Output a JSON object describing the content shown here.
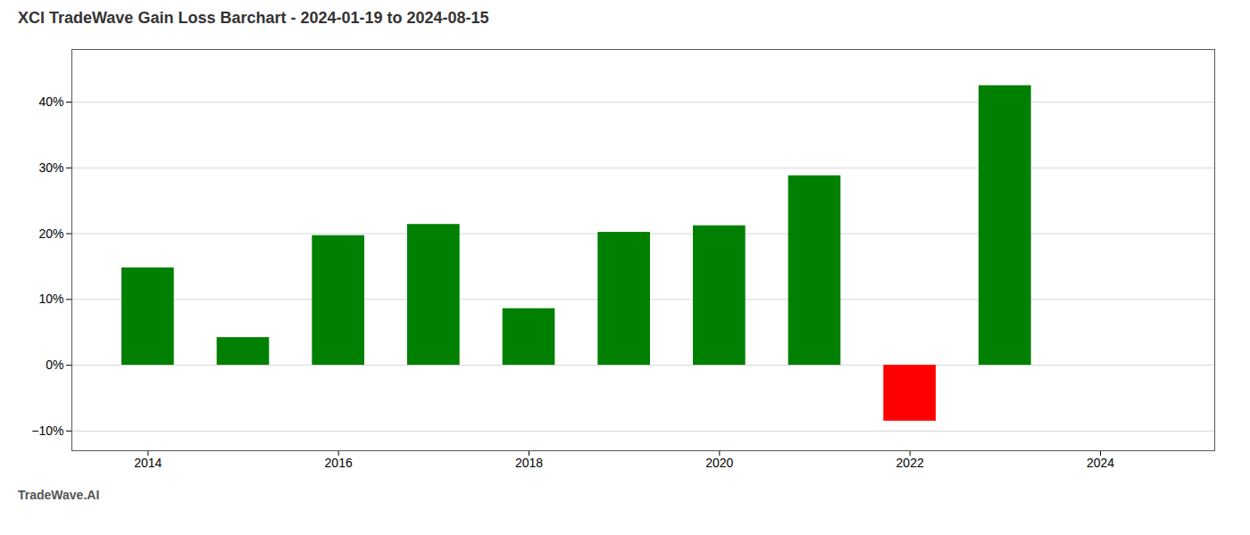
{
  "chart_data": {
    "type": "bar",
    "title": "XCI TradeWave Gain Loss Barchart - 2024-01-19 to 2024-08-15",
    "annotations": [
      "TradeWave.AI"
    ],
    "x": [
      2014,
      2015,
      2016,
      2017,
      2018,
      2019,
      2020,
      2021,
      2022,
      2023
    ],
    "values": [
      14.8,
      4.2,
      19.7,
      21.4,
      8.6,
      20.2,
      21.2,
      28.8,
      -8.5,
      42.5
    ],
    "colors": [
      "#008000",
      "#008000",
      "#008000",
      "#008000",
      "#008000",
      "#008000",
      "#008000",
      "#008000",
      "#ff0000",
      "#008000"
    ],
    "xlim": [
      2013.2,
      2025.2
    ],
    "xticks": [
      2014,
      2016,
      2018,
      2020,
      2022,
      2024
    ],
    "ylim": [
      -13,
      48
    ],
    "yticks": [
      {
        "value": -10,
        "label": "−10%"
      },
      {
        "value": 0,
        "label": "0%"
      },
      {
        "value": 10,
        "label": "10%"
      },
      {
        "value": 20,
        "label": "20%"
      },
      {
        "value": 30,
        "label": "30%"
      },
      {
        "value": 40,
        "label": "40%"
      }
    ],
    "grid": true
  }
}
